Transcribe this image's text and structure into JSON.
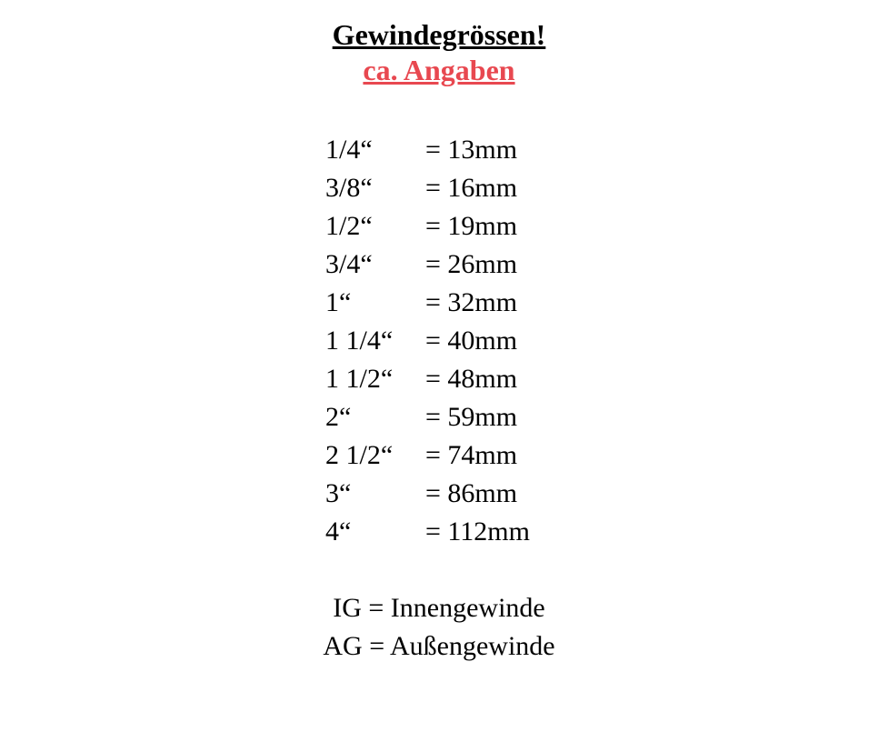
{
  "header": {
    "title": "Gewindegrössen!",
    "subtitle": "ca. Angaben"
  },
  "colors": {
    "title": "#000000",
    "subtitle": "#e84850",
    "text": "#000000",
    "background": "#ffffff"
  },
  "typography": {
    "title_fontsize": 32,
    "subtitle_fontsize": 32,
    "row_fontsize": 30,
    "legend_fontsize": 30,
    "font_family": "Georgia, Times New Roman, serif",
    "title_weight": "bold",
    "subtitle_weight": "bold"
  },
  "table": {
    "rows": [
      {
        "size": "1/4“",
        "value": "= 13mm"
      },
      {
        "size": "3/8“",
        "value": "= 16mm"
      },
      {
        "size": "1/2“",
        "value": "= 19mm"
      },
      {
        "size": "3/4“",
        "value": "= 26mm"
      },
      {
        "size": "1“",
        "value": "= 32mm"
      },
      {
        "size": "1 1/4“",
        "value": "= 40mm"
      },
      {
        "size": "1 1/2“",
        "value": "= 48mm"
      },
      {
        "size": "2“",
        "value": "= 59mm"
      },
      {
        "size": "2 1/2“",
        "value": "= 74mm"
      },
      {
        "size": "3“",
        "value": "= 86mm"
      },
      {
        "size": "4“",
        "value": "= 112mm"
      }
    ]
  },
  "legend": {
    "items": [
      "IG = Innengewinde",
      "AG = Außengewinde"
    ]
  }
}
